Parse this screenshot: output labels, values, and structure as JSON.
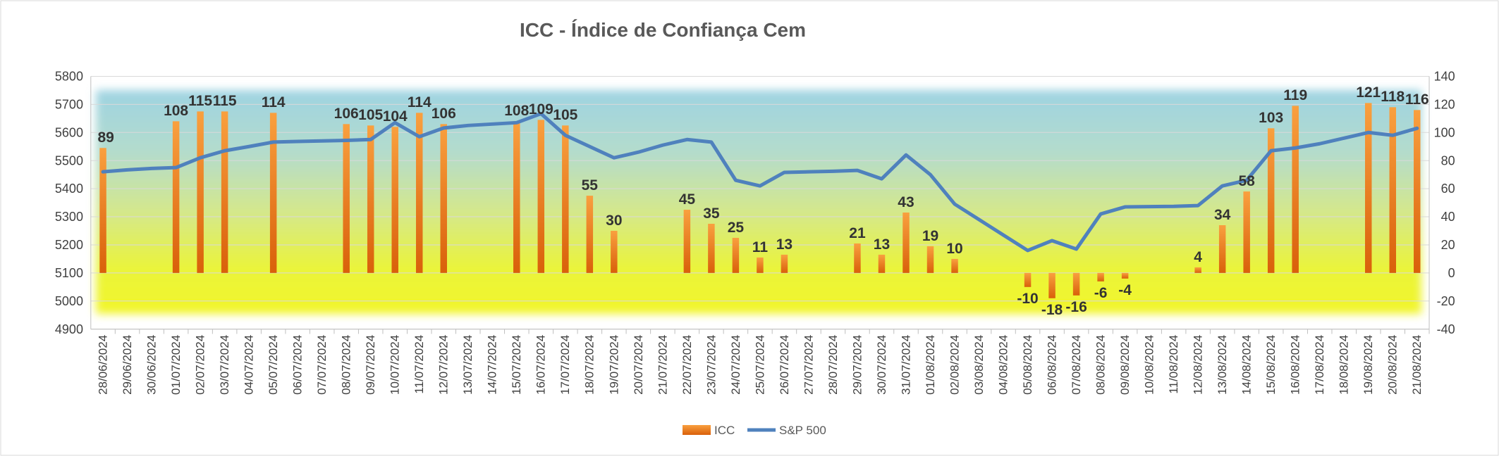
{
  "chart_data": {
    "type": "bar",
    "title": "ICC - Índice de Confiança Cem",
    "xlabel": "",
    "ylabel": "",
    "y_left_lim": [
      4900,
      5800
    ],
    "y_left_ticks": [
      "5800",
      "5700",
      "5600",
      "5500",
      "5400",
      "5300",
      "5200",
      "5100",
      "5000",
      "4900"
    ],
    "y_right_lim": [
      -40,
      140
    ],
    "y_right_ticks": [
      "140",
      "120",
      "100",
      "80",
      "60",
      "40",
      "20",
      "0",
      "-20",
      "-40"
    ],
    "legend_position": "bottom",
    "grid": true,
    "categories": [
      "28/06/2024",
      "29/06/2024",
      "30/06/2024",
      "01/07/2024",
      "02/07/2024",
      "03/07/2024",
      "04/07/2024",
      "05/07/2024",
      "06/07/2024",
      "07/07/2024",
      "08/07/2024",
      "09/07/2024",
      "10/07/2024",
      "11/07/2024",
      "12/07/2024",
      "13/07/2024",
      "14/07/2024",
      "15/07/2024",
      "16/07/2024",
      "17/07/2024",
      "18/07/2024",
      "19/07/2024",
      "20/07/2024",
      "21/07/2024",
      "22/07/2024",
      "23/07/2024",
      "24/07/2024",
      "25/07/2024",
      "26/07/2024",
      "27/07/2024",
      "28/07/2024",
      "29/07/2024",
      "30/07/2024",
      "31/07/2024",
      "01/08/2024",
      "02/08/2024",
      "03/08/2024",
      "04/08/2024",
      "05/08/2024",
      "06/08/2024",
      "07/08/2024",
      "08/08/2024",
      "09/08/2024",
      "10/08/2024",
      "11/08/2024",
      "12/08/2024",
      "13/08/2024",
      "14/08/2024",
      "15/08/2024",
      "16/08/2024",
      "17/08/2024",
      "18/08/2024",
      "19/08/2024",
      "20/08/2024",
      "21/08/2024"
    ],
    "series": [
      {
        "name": "ICC",
        "type": "bar",
        "axis": "right",
        "color": "#F07F1E",
        "values": [
          89,
          null,
          null,
          108,
          115,
          115,
          null,
          114,
          null,
          null,
          106,
          105,
          104,
          114,
          106,
          null,
          null,
          108,
          109,
          105,
          55,
          30,
          null,
          null,
          45,
          35,
          25,
          11,
          13,
          null,
          null,
          21,
          13,
          43,
          19,
          10,
          null,
          null,
          -10,
          -18,
          -16,
          -6,
          -4,
          null,
          null,
          4,
          34,
          58,
          103,
          119,
          null,
          null,
          121,
          118,
          116
        ]
      },
      {
        "name": "S&P 500",
        "type": "line",
        "axis": "left",
        "color": "#4F81BD",
        "values": [
          5460,
          5467,
          5472,
          5475,
          5510,
          5535,
          5550,
          5566,
          5568,
          5570,
          5572,
          5575,
          5635,
          5585,
          5616,
          5625,
          5630,
          5635,
          5667,
          5590,
          5550,
          5510,
          5530,
          5555,
          5575,
          5566,
          5430,
          5410,
          5458,
          5460,
          5462,
          5465,
          5435,
          5520,
          5450,
          5345,
          5290,
          5235,
          5180,
          5215,
          5185,
          5310,
          5335,
          5336,
          5337,
          5340,
          5410,
          5430,
          5535,
          5545,
          5560,
          5580,
          5600,
          5590,
          5615
        ]
      }
    ]
  }
}
